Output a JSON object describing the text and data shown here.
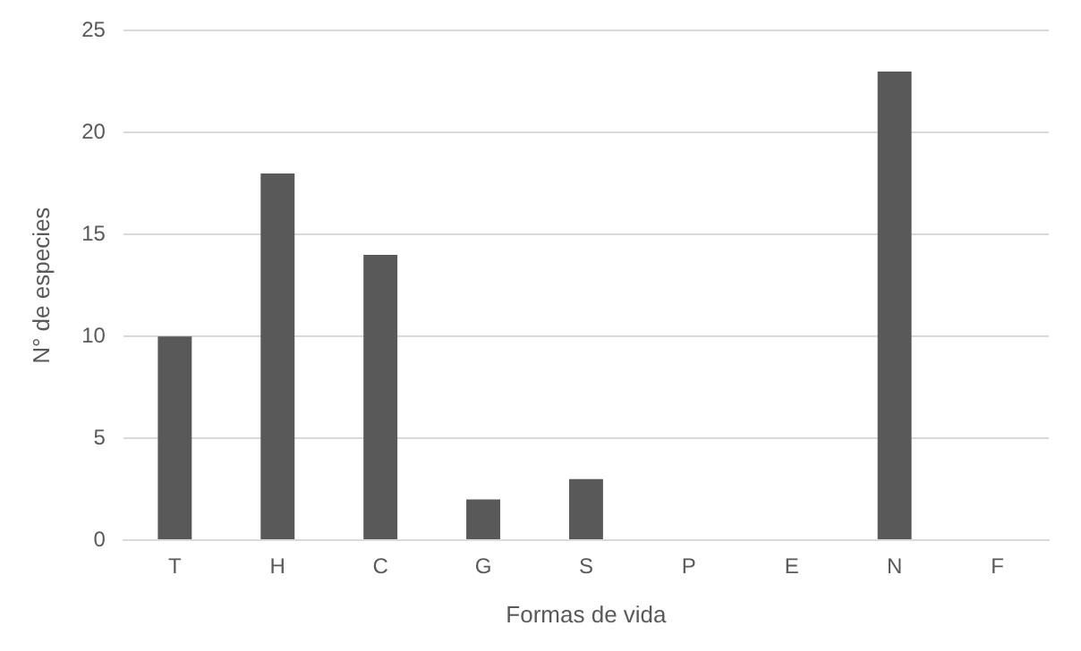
{
  "chart_data": {
    "type": "bar",
    "xlabel": "Formas de vida",
    "ylabel": "N° de especies",
    "categories": [
      "T",
      "H",
      "C",
      "G",
      "S",
      "P",
      "E",
      "N",
      "F"
    ],
    "values": [
      10,
      18,
      14,
      2,
      3,
      0,
      0,
      23,
      0
    ],
    "color": "#595959",
    "ylim": [
      0,
      25
    ],
    "yticks": [
      0,
      5,
      10,
      15,
      20,
      25
    ],
    "grid": "y",
    "legend": false
  }
}
